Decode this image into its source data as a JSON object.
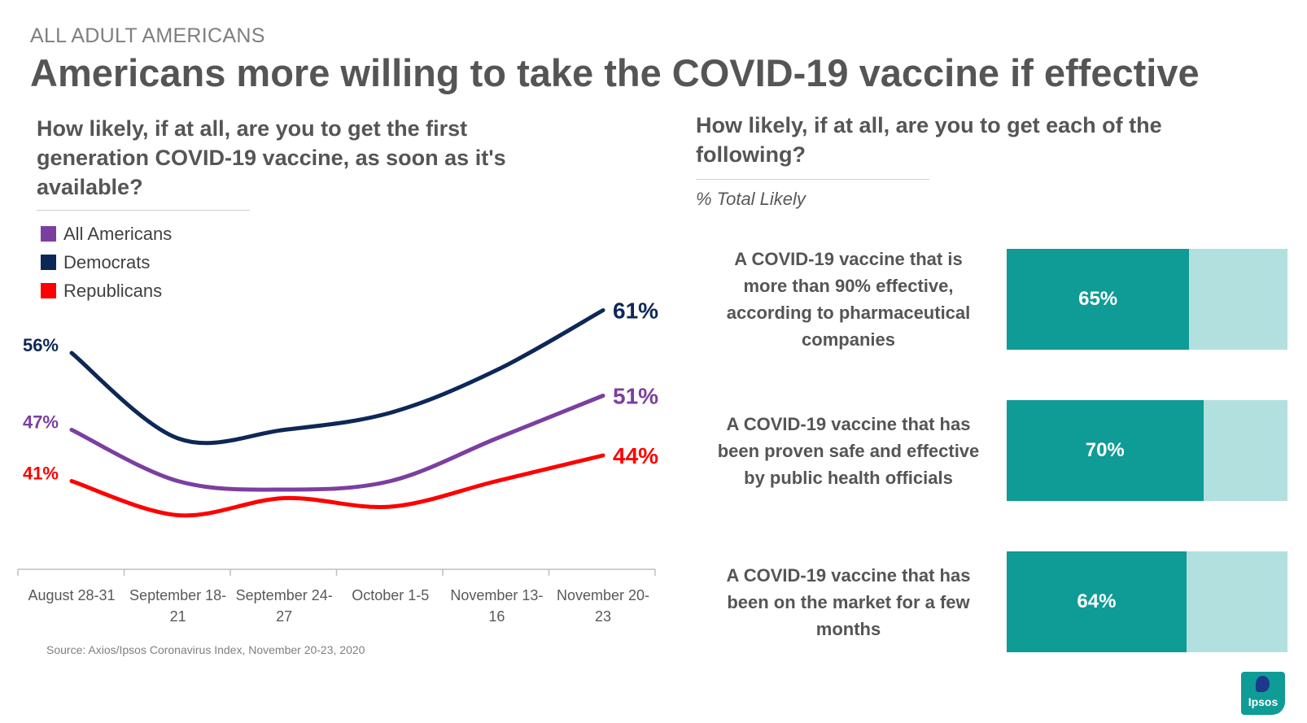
{
  "header": {
    "eyebrow": "ALL ADULT AMERICANS",
    "title": "Americans more willing to take the COVID-19 vaccine if effective"
  },
  "left_panel": {
    "question": "How likely, if at all, are you to get the first generation COVID-19 vaccine, as soon as it's available?",
    "source": "Source: Axios/Ipsos Coronavirus Index, November 20-23, 2020"
  },
  "right_panel": {
    "question": "How likely, if at all, are you to get each of the following?",
    "metric_label": "% Total Likely"
  },
  "logo": {
    "text": "Ipsos"
  },
  "colors": {
    "all_americans": "#7b3fa0",
    "democrats": "#0d2857",
    "republicans": "#ff0000",
    "bar_fill": "#0f9b96",
    "bar_track": "#b2e0df"
  },
  "chart_data": [
    {
      "type": "line",
      "categories": [
        "August 28-31",
        "September 18-21",
        "September 24-27",
        "October 1-5",
        "November 13-16",
        "November 20-23"
      ],
      "category_lines": [
        [
          "August 28-31"
        ],
        [
          "September 18-",
          "21"
        ],
        [
          "September 24-",
          "27"
        ],
        [
          "October 1-5"
        ],
        [
          "November 13-",
          "16"
        ],
        [
          "November 20-",
          "23"
        ]
      ],
      "series": [
        {
          "name": "Democrats",
          "color": "#0d2857",
          "values": [
            56,
            46,
            47,
            49,
            54,
            61
          ],
          "start_label": "56%",
          "end_label": "61%"
        },
        {
          "name": "All Americans",
          "color": "#7b3fa0",
          "values": [
            47,
            41,
            40,
            41,
            46,
            51
          ],
          "start_label": "47%",
          "end_label": "51%"
        },
        {
          "name": "Republicans",
          "color": "#ff0000",
          "values": [
            41,
            37,
            39,
            38,
            41,
            44
          ],
          "start_label": "41%",
          "end_label": "44%"
        }
      ],
      "legend_position": "top-left",
      "grid": false
    },
    {
      "type": "bar",
      "orientation": "horizontal",
      "categories": [
        "A COVID-19 vaccine that is more than 90% effective, according to pharmaceutical companies",
        "A COVID-19 vaccine that has been proven safe and effective by public health officials",
        "A COVID-19 vaccine that has been on the market for a few months"
      ],
      "category_lines": [
        [
          "A COVID-19 vaccine that is",
          "more than 90% effective,",
          "according to pharmaceutical",
          "companies"
        ],
        [
          "A COVID-19 vaccine that has",
          "been proven safe and effective",
          "by public health officials"
        ],
        [
          "A COVID-19 vaccine that has",
          "been on the market for a few",
          "months"
        ]
      ],
      "values": [
        65,
        70,
        64
      ],
      "value_labels": [
        "65%",
        "70%",
        "64%"
      ],
      "xlim": [
        0,
        100
      ]
    }
  ]
}
